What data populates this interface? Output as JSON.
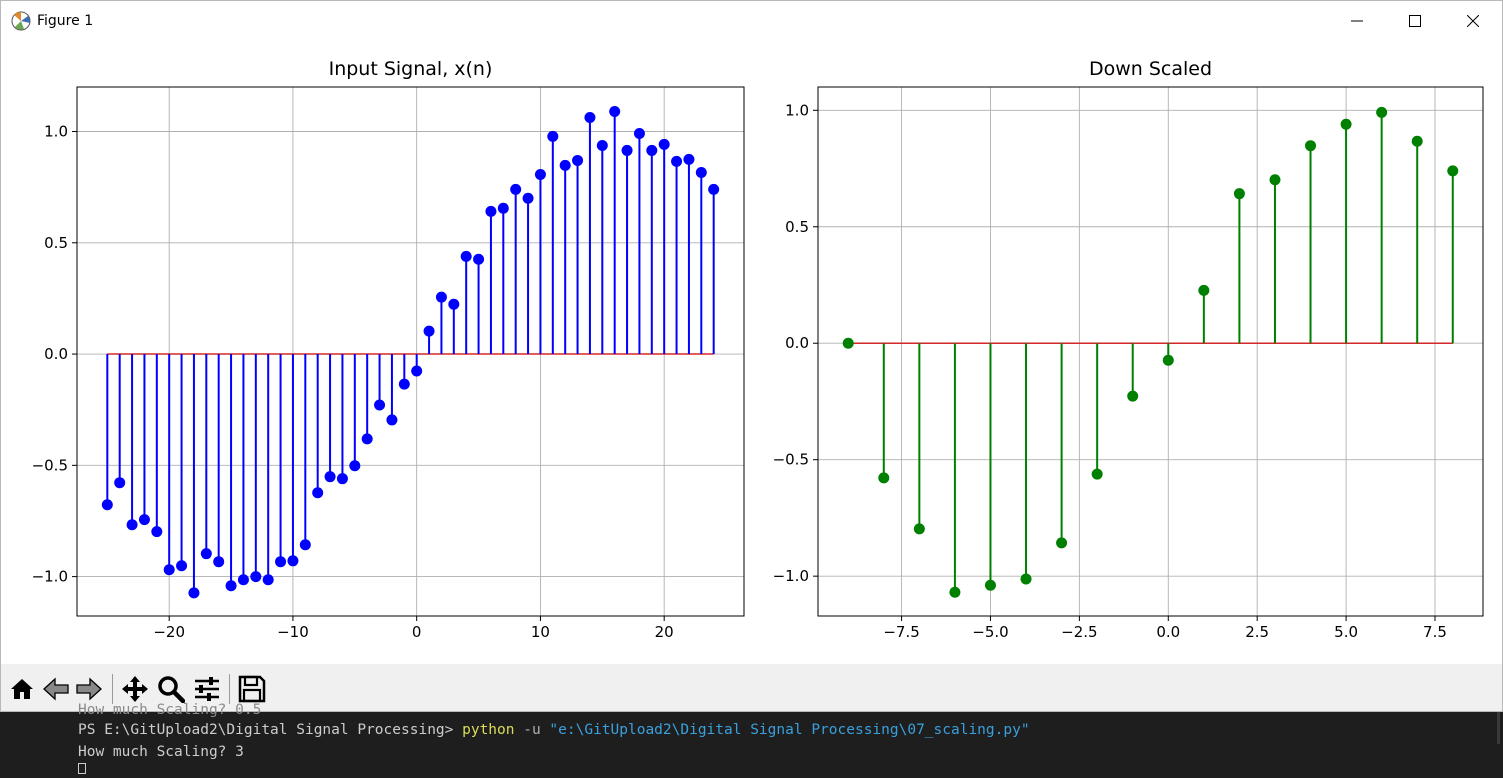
{
  "window": {
    "title": "Figure 1",
    "icons": {
      "app": "matplotlib-figure-icon",
      "minimize": "minimize-icon",
      "maximize": "maximize-icon",
      "close": "close-icon"
    }
  },
  "toolbar": {
    "buttons": [
      {
        "name": "home-button",
        "icon": "home-icon"
      },
      {
        "name": "back-button",
        "icon": "arrow-left-icon"
      },
      {
        "name": "forward-button",
        "icon": "arrow-right-icon"
      },
      {
        "name": "pan-button",
        "icon": "move-icon"
      },
      {
        "name": "zoom-button",
        "icon": "search-icon"
      },
      {
        "name": "configure-subplots-button",
        "icon": "sliders-icon"
      },
      {
        "name": "save-button",
        "icon": "floppy-disk-icon"
      }
    ]
  },
  "terminal": {
    "partial_line": "How much Scaling? 0.5",
    "prompt": "PS E:\\GitUpload2\\Digital Signal Processing> ",
    "command": "python",
    "flag": " -u ",
    "path": "\"e:\\GitUpload2\\Digital Signal Processing\\07_scaling.py\"",
    "question": "How much Scaling? 3",
    "colors": {
      "text": "#cccccc",
      "command": "#dcdc5a",
      "flag": "#b0b0b0",
      "path": "#3aa0dc"
    }
  },
  "chart_data": [
    {
      "type": "stem",
      "title": "Input Signal, x(n)",
      "xlabel": "",
      "ylabel": "",
      "color": "#0000ff",
      "grid": true,
      "xlim": [
        -27.45,
        26.45
      ],
      "ylim": [
        -1.177,
        1.2
      ],
      "xticks": [
        -20,
        -10,
        0,
        10,
        20
      ],
      "xtick_labels": [
        "−20",
        "−10",
        "0",
        "10",
        "20"
      ],
      "yticks": [
        -1.0,
        -0.5,
        0.0,
        0.5,
        1.0
      ],
      "ytick_labels": [
        "−1.0",
        "−0.5",
        "0.0",
        "0.5",
        "1.0"
      ],
      "x": [
        -25,
        -24,
        -23,
        -22,
        -21,
        -20,
        -19,
        -18,
        -17,
        -16,
        -15,
        -14,
        -13,
        -12,
        -11,
        -10,
        -9,
        -8,
        -7,
        -6,
        -5,
        -4,
        -3,
        -2,
        -1,
        0,
        1,
        2,
        3,
        4,
        5,
        6,
        7,
        8,
        9,
        10,
        11,
        12,
        13,
        14,
        15,
        16,
        17,
        18,
        19,
        20,
        21,
        22,
        23,
        24
      ],
      "y": [
        -0.677,
        -0.578,
        -0.767,
        -0.744,
        -0.798,
        -0.969,
        -0.951,
        -1.073,
        -0.897,
        -0.933,
        -1.041,
        -1.014,
        -1.0,
        -1.014,
        -0.933,
        -0.929,
        -0.857,
        -0.623,
        -0.551,
        -0.56,
        -0.502,
        -0.381,
        -0.229,
        -0.296,
        -0.135,
        -0.076,
        0.103,
        0.256,
        0.224,
        0.439,
        0.426,
        0.641,
        0.655,
        0.74,
        0.7,
        0.807,
        0.978,
        0.848,
        0.87,
        1.063,
        0.937,
        1.09,
        0.915,
        0.991,
        0.915,
        0.942,
        0.866,
        0.875,
        0.816,
        0.74
      ]
    },
    {
      "type": "stem",
      "title": "Down Scaled",
      "xlabel": "",
      "ylabel": "",
      "color": "#008000",
      "grid": true,
      "xlim": [
        -9.85,
        8.85
      ],
      "ylim": [
        -1.171,
        1.1
      ],
      "xticks": [
        -7.5,
        -5.0,
        -2.5,
        0.0,
        2.5,
        5.0,
        7.5
      ],
      "xtick_labels": [
        "−7.5",
        "−5.0",
        "−2.5",
        "0.0",
        "2.5",
        "5.0",
        "7.5"
      ],
      "yticks": [
        -1.0,
        -0.5,
        0.0,
        0.5,
        1.0
      ],
      "ytick_labels": [
        "−1.0",
        "−0.5",
        "0.0",
        "0.5",
        "1.0"
      ],
      "x": [
        -9,
        -8,
        -7,
        -6,
        -5,
        -4,
        -3,
        -2,
        -1,
        0,
        1,
        2,
        3,
        4,
        5,
        6,
        7,
        8
      ],
      "y": [
        0.0,
        -0.578,
        -0.797,
        -1.069,
        -1.039,
        -1.012,
        -0.857,
        -0.562,
        -0.227,
        -0.073,
        0.227,
        0.642,
        0.702,
        0.848,
        0.94,
        0.991,
        0.867,
        0.74
      ]
    }
  ]
}
